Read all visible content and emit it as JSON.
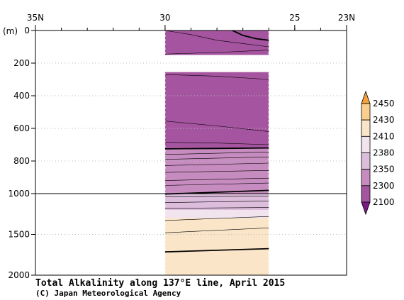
{
  "chart_data": {
    "type": "section-contour",
    "title": "Total Alkalinity along 137°E line, April 2015",
    "credit": "(C) Japan Meteorological Agency",
    "depth_unit": "(m)",
    "x_axis": {
      "reversed": true,
      "xlim": [
        35,
        23
      ],
      "ticks": [
        {
          "value": 35,
          "label": "35N"
        },
        {
          "value": 30,
          "label": "30"
        },
        {
          "value": 25,
          "label": "25"
        },
        {
          "value": 23,
          "label": "23N"
        }
      ],
      "minor_step": 1
    },
    "y_axis": {
      "reversed": true,
      "ylim": [
        0,
        2000
      ],
      "broken_at": 1000,
      "ticks": [
        0,
        200,
        400,
        600,
        800,
        1000,
        1500,
        2000
      ],
      "grid": "dotted"
    },
    "data_extent": {
      "lat_from": 30,
      "lat_to": 26.0
    },
    "gap": {
      "depth_from": 150,
      "depth_to": 255
    },
    "colorbar": {
      "levels": [
        "2100",
        "2300",
        "2350",
        "2380",
        "2410",
        "2430",
        "2450"
      ],
      "colors": [
        "#7a1a84",
        "#a5549f",
        "#c68cbf",
        "#dcbddb",
        "#f2e4ee",
        "#fbe5c8",
        "#f8cf8e",
        "#f3a13a"
      ]
    },
    "bands": [
      {
        "depth_from": 0,
        "depth_to": 150,
        "color": "#a5549f"
      },
      {
        "depth_from": 255,
        "depth_to": 720,
        "color": "#a5549f"
      },
      {
        "depth_from": 720,
        "depth_to": 1000,
        "color": "#c68cbf"
      },
      {
        "depth_from": 1000,
        "depth_to": 1200,
        "color": "#dcbddb"
      },
      {
        "depth_from": 1200,
        "depth_to": 1300,
        "color": "#f2e4ee"
      },
      {
        "depth_from": 1300,
        "depth_to": 2000,
        "color": "#fbe5c8"
      }
    ],
    "contours": [
      {
        "thick": false,
        "points": [
          [
            30.0,
            0
          ],
          [
            29.0,
            25
          ],
          [
            28.0,
            60
          ],
          [
            27.0,
            80
          ],
          [
            26.0,
            100
          ]
        ]
      },
      {
        "thick": true,
        "points": [
          [
            27.4,
            0
          ],
          [
            27.0,
            30
          ],
          [
            26.5,
            50
          ],
          [
            26.0,
            60
          ]
        ]
      },
      {
        "thick": false,
        "points": [
          [
            30.0,
            145
          ],
          [
            28.0,
            135
          ],
          [
            26.0,
            120
          ]
        ]
      },
      {
        "thick": false,
        "points": [
          [
            30.0,
            270
          ],
          [
            28.0,
            280
          ],
          [
            26.0,
            300
          ]
        ]
      },
      {
        "thick": false,
        "points": [
          [
            30.0,
            555
          ],
          [
            28.0,
            585
          ],
          [
            26.0,
            620
          ]
        ]
      },
      {
        "thick": false,
        "points": [
          [
            30.0,
            685
          ],
          [
            28.0,
            690
          ],
          [
            26.0,
            700
          ]
        ]
      },
      {
        "thick": true,
        "points": [
          [
            30.0,
            725
          ],
          [
            28.0,
            723
          ],
          [
            26.0,
            720
          ]
        ]
      },
      {
        "thick": false,
        "points": [
          [
            30.0,
            760
          ],
          [
            26.0,
            745
          ]
        ]
      },
      {
        "thick": false,
        "points": [
          [
            30.0,
            790
          ],
          [
            26.0,
            775
          ]
        ]
      },
      {
        "thick": false,
        "points": [
          [
            30.0,
            828
          ],
          [
            26.0,
            813
          ]
        ]
      },
      {
        "thick": false,
        "points": [
          [
            30.0,
            870
          ],
          [
            26.0,
            858
          ]
        ]
      },
      {
        "thick": false,
        "points": [
          [
            30.0,
            920
          ],
          [
            26.0,
            905
          ]
        ]
      },
      {
        "thick": false,
        "points": [
          [
            30.0,
            950
          ],
          [
            26.0,
            935
          ]
        ]
      },
      {
        "thick": true,
        "points": [
          [
            30.0,
            1005
          ],
          [
            26.0,
            980
          ]
        ]
      },
      {
        "thick": false,
        "points": [
          [
            30.0,
            1040
          ],
          [
            26.0,
            1030
          ]
        ]
      },
      {
        "thick": false,
        "points": [
          [
            30.0,
            1110
          ],
          [
            26.0,
            1090
          ]
        ]
      },
      {
        "thick": false,
        "points": [
          [
            30.0,
            1180
          ],
          [
            26.0,
            1170
          ]
        ]
      },
      {
        "thick": false,
        "points": [
          [
            30.0,
            1330
          ],
          [
            26.0,
            1280
          ]
        ]
      },
      {
        "thick": false,
        "points": [
          [
            30.0,
            1480
          ],
          [
            26.0,
            1420
          ]
        ]
      },
      {
        "thick": true,
        "points": [
          [
            30.0,
            1715
          ],
          [
            26.0,
            1675
          ]
        ]
      }
    ]
  }
}
